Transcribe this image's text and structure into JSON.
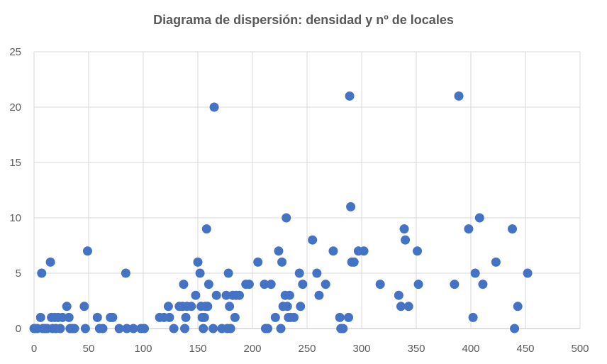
{
  "chart_data": {
    "type": "scatter",
    "title": "Diagrama de dispersión: densidad y nº de locales",
    "xlabel": "",
    "ylabel": "",
    "xlim": [
      0,
      500
    ],
    "ylim": [
      0,
      25
    ],
    "x_ticks": [
      "0",
      "50",
      "100",
      "150",
      "200",
      "250",
      "300",
      "350",
      "400",
      "450",
      "500"
    ],
    "y_ticks": [
      "0",
      "5",
      "10",
      "15",
      "20",
      "25"
    ],
    "grid": true,
    "legend": "none",
    "marker_color": "#4472C4",
    "points": [
      [
        0,
        0
      ],
      [
        1,
        0
      ],
      [
        3,
        0
      ],
      [
        6,
        1
      ],
      [
        7,
        5
      ],
      [
        8,
        0
      ],
      [
        10,
        0
      ],
      [
        12,
        0
      ],
      [
        15,
        6
      ],
      [
        16,
        1
      ],
      [
        17,
        0
      ],
      [
        19,
        1
      ],
      [
        20,
        0
      ],
      [
        22,
        1
      ],
      [
        24,
        0
      ],
      [
        26,
        1
      ],
      [
        30,
        2
      ],
      [
        32,
        1
      ],
      [
        33,
        0
      ],
      [
        35,
        0
      ],
      [
        37,
        0
      ],
      [
        46,
        2
      ],
      [
        47,
        0
      ],
      [
        49,
        7
      ],
      [
        58,
        1
      ],
      [
        60,
        0
      ],
      [
        63,
        0
      ],
      [
        70,
        1
      ],
      [
        72,
        1
      ],
      [
        78,
        0
      ],
      [
        84,
        5
      ],
      [
        85,
        0
      ],
      [
        91,
        0
      ],
      [
        98,
        0
      ],
      [
        101,
        0
      ],
      [
        115,
        1
      ],
      [
        119,
        1
      ],
      [
        123,
        2
      ],
      [
        124,
        1
      ],
      [
        128,
        0
      ],
      [
        133,
        2
      ],
      [
        136,
        2
      ],
      [
        137,
        4
      ],
      [
        138,
        0
      ],
      [
        139,
        1
      ],
      [
        140,
        2
      ],
      [
        144,
        2
      ],
      [
        148,
        3
      ],
      [
        150,
        6
      ],
      [
        152,
        5
      ],
      [
        153,
        2
      ],
      [
        154,
        1
      ],
      [
        155,
        0
      ],
      [
        156,
        1
      ],
      [
        157,
        2
      ],
      [
        158,
        9
      ],
      [
        159,
        2
      ],
      [
        160,
        4
      ],
      [
        164,
        0
      ],
      [
        165,
        20
      ],
      [
        167,
        3
      ],
      [
        172,
        0
      ],
      [
        176,
        3
      ],
      [
        177,
        0
      ],
      [
        178,
        5
      ],
      [
        179,
        2
      ],
      [
        180,
        0
      ],
      [
        182,
        3
      ],
      [
        184,
        1
      ],
      [
        185,
        3
      ],
      [
        188,
        3
      ],
      [
        194,
        4
      ],
      [
        197,
        4
      ],
      [
        205,
        6
      ],
      [
        211,
        4
      ],
      [
        212,
        0
      ],
      [
        214,
        0
      ],
      [
        217,
        4
      ],
      [
        221,
        1
      ],
      [
        224,
        7
      ],
      [
        226,
        0
      ],
      [
        227,
        6
      ],
      [
        228,
        2
      ],
      [
        230,
        3
      ],
      [
        231,
        10
      ],
      [
        232,
        2
      ],
      [
        233,
        1
      ],
      [
        234,
        3
      ],
      [
        235,
        1
      ],
      [
        238,
        1
      ],
      [
        243,
        5
      ],
      [
        244,
        2
      ],
      [
        246,
        4
      ],
      [
        255,
        8
      ],
      [
        259,
        5
      ],
      [
        261,
        3
      ],
      [
        267,
        4
      ],
      [
        274,
        7
      ],
      [
        280,
        1
      ],
      [
        281,
        0
      ],
      [
        283,
        0
      ],
      [
        288,
        1
      ],
      [
        289,
        21
      ],
      [
        290,
        11
      ],
      [
        291,
        6
      ],
      [
        293,
        6
      ],
      [
        297,
        7
      ],
      [
        302,
        7
      ],
      [
        317,
        4
      ],
      [
        334,
        3
      ],
      [
        336,
        2
      ],
      [
        339,
        9
      ],
      [
        340,
        8
      ],
      [
        343,
        2
      ],
      [
        351,
        7
      ],
      [
        352,
        4
      ],
      [
        385,
        4
      ],
      [
        389,
        21
      ],
      [
        398,
        9
      ],
      [
        402,
        1
      ],
      [
        404,
        5
      ],
      [
        408,
        10
      ],
      [
        411,
        4
      ],
      [
        423,
        6
      ],
      [
        438,
        9
      ],
      [
        440,
        0
      ],
      [
        443,
        2
      ],
      [
        452,
        5
      ]
    ]
  }
}
